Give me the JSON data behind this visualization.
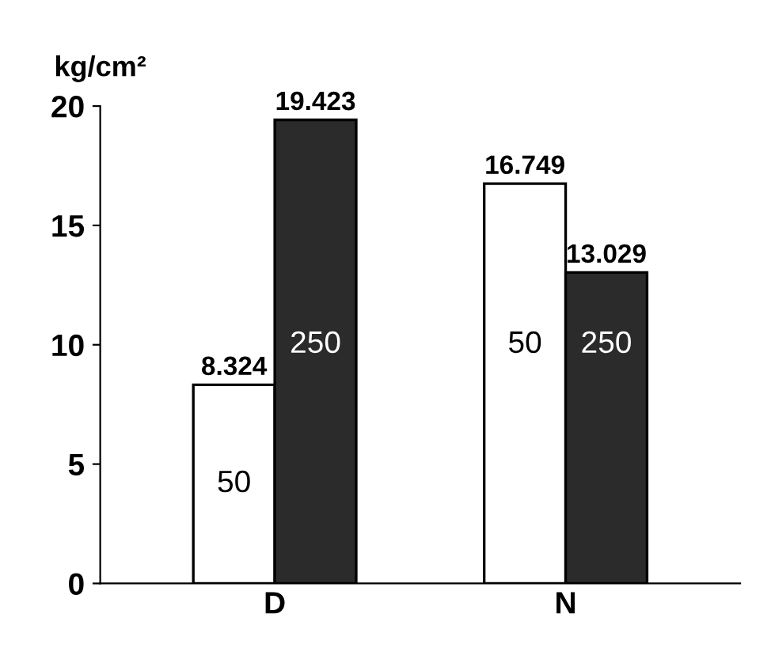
{
  "chart_data": {
    "type": "bar",
    "ylabel": "kg/cm²",
    "categories": [
      "D",
      "N"
    ],
    "series": [
      {
        "name": "50",
        "color": "#ffffff",
        "values": [
          8.324,
          16.749
        ]
      },
      {
        "name": "250",
        "color": "#2b2b2b",
        "values": [
          19.423,
          13.029
        ]
      }
    ],
    "ylim": [
      0,
      20
    ],
    "yticks": [
      0,
      5,
      10,
      15,
      20
    ],
    "data_labels": true,
    "grid": false,
    "legend": false
  }
}
